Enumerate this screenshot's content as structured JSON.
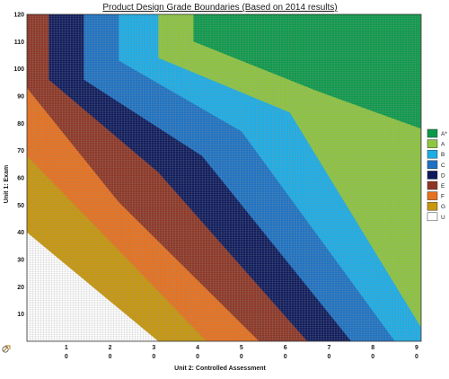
{
  "chart_data": {
    "type": "heatmap",
    "title": "Product Design Grade Boundaries (Based on 2014 results)",
    "xlabel": "Unit 2: Controlled Assessment",
    "ylabel": "Unit 1: Exam",
    "x_ticks": [
      {
        "value": 1,
        "label": "1",
        "sublabel": "0"
      },
      {
        "value": 2,
        "label": "2",
        "sublabel": "0"
      },
      {
        "value": 3,
        "label": "3",
        "sublabel": "0"
      },
      {
        "value": 4,
        "label": "4",
        "sublabel": "0"
      },
      {
        "value": 5,
        "label": "5",
        "sublabel": "0"
      },
      {
        "value": 6,
        "label": "6",
        "sublabel": "0"
      },
      {
        "value": 7,
        "label": "7",
        "sublabel": "0"
      },
      {
        "value": 8,
        "label": "8",
        "sublabel": "0"
      },
      {
        "value": 9,
        "label": "9",
        "sublabel": "0"
      }
    ],
    "y_ticks": [
      {
        "value": 10,
        "label": "10"
      },
      {
        "value": 20,
        "label": "20"
      },
      {
        "value": 30,
        "label": "30"
      },
      {
        "value": 40,
        "label": "40"
      },
      {
        "value": 50,
        "label": "50"
      },
      {
        "value": 60,
        "label": "60"
      },
      {
        "value": 70,
        "label": "70"
      },
      {
        "value": 80,
        "label": "80"
      },
      {
        "value": 90,
        "label": "90"
      },
      {
        "value": 100,
        "label": "100"
      },
      {
        "value": 110,
        "label": "110"
      },
      {
        "value": 120,
        "label": "120"
      }
    ],
    "xlim": [
      0,
      90
    ],
    "ylim": [
      0,
      120
    ],
    "grid": true,
    "legend_position": "right",
    "grades": [
      {
        "name": "A*",
        "color": "#0a9a4a"
      },
      {
        "name": "A",
        "color": "#8ec63f"
      },
      {
        "name": "B",
        "color": "#1aaee8"
      },
      {
        "name": "C",
        "color": "#1b72c4"
      },
      {
        "name": "D",
        "color": "#0c1a5c"
      },
      {
        "name": "E",
        "color": "#8e3524"
      },
      {
        "name": "F",
        "color": "#e8711d"
      },
      {
        "name": "G",
        "color": "#c8970b"
      },
      {
        "name": "U",
        "color": "#ffffff"
      }
    ],
    "boundaries": [
      {
        "grade": "G",
        "points": [
          [
            0,
            40
          ],
          [
            30,
            0
          ]
        ]
      },
      {
        "grade": "F",
        "points": [
          [
            0,
            68
          ],
          [
            17,
            40
          ],
          [
            41,
            0
          ]
        ]
      },
      {
        "grade": "E",
        "points": [
          [
            0,
            93
          ],
          [
            21,
            51
          ],
          [
            53,
            0
          ]
        ]
      },
      {
        "grade": "D",
        "points": [
          [
            0,
            120
          ],
          [
            5,
            120
          ],
          [
            5,
            96
          ],
          [
            30,
            62
          ],
          [
            64,
            0
          ]
        ]
      },
      {
        "grade": "C",
        "points": [
          [
            0,
            120
          ],
          [
            13,
            120
          ],
          [
            13,
            96
          ],
          [
            40,
            68
          ],
          [
            74,
            0
          ]
        ]
      },
      {
        "grade": "B",
        "points": [
          [
            0,
            120
          ],
          [
            21,
            120
          ],
          [
            21,
            103
          ],
          [
            49,
            77
          ],
          [
            84,
            0
          ]
        ]
      },
      {
        "grade": "A",
        "points": [
          [
            0,
            120
          ],
          [
            30,
            120
          ],
          [
            30,
            104
          ],
          [
            60,
            84
          ],
          [
            90,
            5
          ]
        ]
      },
      {
        "grade": "A*",
        "points": [
          [
            0,
            120
          ],
          [
            38,
            120
          ],
          [
            38,
            110
          ],
          [
            66,
            92
          ],
          [
            90,
            78
          ]
        ]
      }
    ]
  }
}
